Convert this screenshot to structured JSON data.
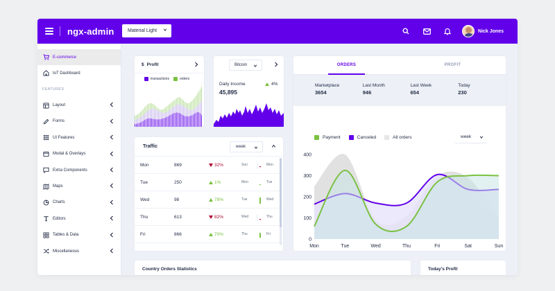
{
  "header": {
    "logo": "ngx-admin",
    "theme": "Material Light",
    "user_name": "Nick Jones",
    "icons": [
      "search-icon",
      "email-icon",
      "bell-icon"
    ],
    "brand_color": "#6200ea"
  },
  "sidebar": {
    "active": {
      "label": "E-commerce",
      "icon": "cart-icon"
    },
    "second": {
      "label": "IoT Dashboard",
      "icon": "home-icon"
    },
    "group_label": "FEATURES",
    "items": [
      {
        "label": "Layout",
        "icon": "layout-icon"
      },
      {
        "label": "Forms",
        "icon": "edit-icon"
      },
      {
        "label": "UI Features",
        "icon": "keypad-icon"
      },
      {
        "label": "Modal & Overlays",
        "icon": "browser-icon"
      },
      {
        "label": "Extra Components",
        "icon": "message-icon"
      },
      {
        "label": "Maps",
        "icon": "map-icon"
      },
      {
        "label": "Charts",
        "icon": "pie-chart-icon"
      },
      {
        "label": "Editors",
        "icon": "text-icon"
      },
      {
        "label": "Tables & Data",
        "icon": "grid-icon"
      },
      {
        "label": "Miscellaneous",
        "icon": "shuffle-icon"
      }
    ]
  },
  "profit_card": {
    "currency_symbol": "$",
    "title": "Profit",
    "legend": [
      {
        "name": "transactions",
        "color": "#6200ea"
      },
      {
        "name": "orders",
        "color": "#7bc142"
      }
    ]
  },
  "bitcoin_card": {
    "coin": "Bitcoin",
    "label": "Daily Income",
    "value": "45,895",
    "delta": "4%",
    "color": "#6200ea"
  },
  "traffic": {
    "title": "Traffic",
    "period": "week",
    "rows": [
      {
        "day": "Mon",
        "value": "869",
        "delta": "32%",
        "trend": "down",
        "prev": "Sun",
        "cur": "Mon"
      },
      {
        "day": "Tue",
        "value": "250",
        "delta": "1%",
        "trend": "up",
        "prev": "Mon",
        "cur": "Tue"
      },
      {
        "day": "Wed",
        "value": "98",
        "delta": "78%",
        "trend": "up",
        "prev": "Tue",
        "cur": "Wed"
      },
      {
        "day": "Thu",
        "value": "613",
        "delta": "82%",
        "trend": "down",
        "prev": "Wed",
        "cur": "Thu"
      },
      {
        "day": "Fri",
        "value": "866",
        "delta": "70%",
        "trend": "up",
        "prev": "Thu",
        "cur": "Fri"
      }
    ],
    "up_color": "#7bc142",
    "down_color": "#b0062e"
  },
  "orders": {
    "tabs": [
      "ORDERS",
      "PROFIT"
    ],
    "active_tab": 0,
    "stats": [
      {
        "label": "Marketplace",
        "value": "3654"
      },
      {
        "label": "Last Month",
        "value": "946"
      },
      {
        "label": "Last Week",
        "value": "654"
      },
      {
        "label": "Today",
        "value": "230"
      }
    ],
    "legend": [
      {
        "name": "Payment",
        "color": "#7bc142"
      },
      {
        "name": "Canceled",
        "color": "#6200ea"
      },
      {
        "name": "All orders",
        "color": "#e6e6e6"
      }
    ],
    "period": "week"
  },
  "chart_data": {
    "type": "area",
    "categories": [
      "Mon",
      "Tue",
      "Wed",
      "Thu",
      "Fri",
      "Sat",
      "Sun"
    ],
    "ylim": [
      0,
      400
    ],
    "yticks": [
      0,
      100,
      200,
      300,
      400
    ],
    "series": [
      {
        "name": "All orders",
        "color": "#e6e6e6",
        "values": [
          250,
          400,
          90,
          110,
          300,
          290,
          90
        ]
      },
      {
        "name": "Canceled",
        "color": "#6200ea",
        "values": [
          165,
          215,
          170,
          170,
          305,
          235,
          235
        ]
      },
      {
        "name": "Payment",
        "color": "#7bc142",
        "values": [
          60,
          325,
          70,
          60,
          270,
          300,
          300
        ]
      }
    ]
  },
  "bottom": {
    "country_title": "Country Orders Statistics",
    "profit_title": "Today's Profit"
  }
}
